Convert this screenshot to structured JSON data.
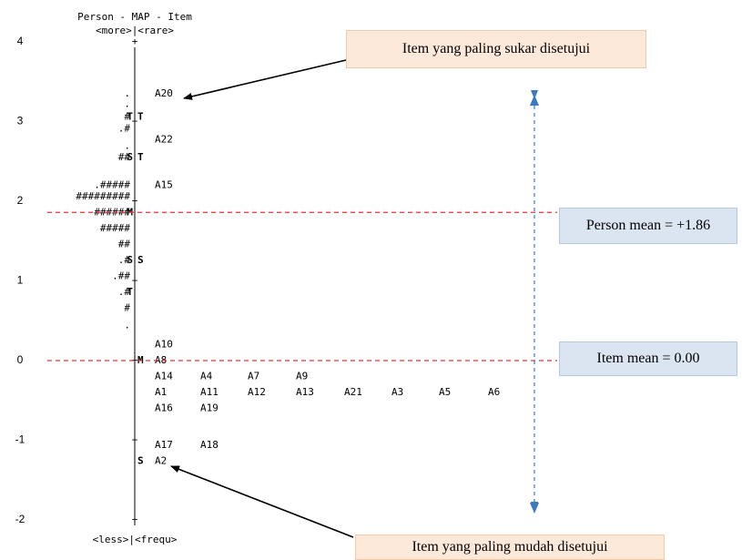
{
  "chart_data": {
    "type": "wright-map",
    "title_lines": [
      "Person - MAP - Item",
      "<more>|<rare>"
    ],
    "bottom_label": "<less>|<frequ>",
    "y_ticks": [
      4,
      3,
      2,
      1,
      0,
      -1,
      -2
    ],
    "person_rows": [
      {
        "y": 3.35,
        "symbols": "."
      },
      {
        "y": 3.22,
        "symbols": "."
      },
      {
        "y": 3.06,
        "symbols": "#"
      },
      {
        "y": 2.91,
        "symbols": ".#"
      },
      {
        "y": 2.69,
        "symbols": "."
      },
      {
        "y": 2.55,
        "symbols": "##"
      },
      {
        "y": 2.2,
        "symbols": ".#####"
      },
      {
        "y": 2.06,
        "symbols": "#########"
      },
      {
        "y": 1.86,
        "symbols": "######"
      },
      {
        "y": 1.66,
        "symbols": "#####"
      },
      {
        "y": 1.46,
        "symbols": "##"
      },
      {
        "y": 1.26,
        "symbols": ".#"
      },
      {
        "y": 1.06,
        "symbols": ".##"
      },
      {
        "y": 0.86,
        "symbols": ".#"
      },
      {
        "y": 0.66,
        "symbols": "#"
      },
      {
        "y": 0.44,
        "symbols": "."
      }
    ],
    "person_markers": [
      {
        "y": 3.06,
        "label": "T"
      },
      {
        "y": 2.55,
        "label": "S"
      },
      {
        "y": 1.86,
        "label": "M"
      },
      {
        "y": 1.26,
        "label": "S"
      },
      {
        "y": 0.86,
        "label": "T"
      }
    ],
    "item_markers": [
      {
        "y": 3.06,
        "label": "T"
      },
      {
        "y": 2.55,
        "label": "T"
      },
      {
        "y": 1.26,
        "label": "S"
      },
      {
        "y": 0.0,
        "label": "M"
      },
      {
        "y": -1.26,
        "label": "S"
      }
    ],
    "item_rows": [
      {
        "y": 3.35,
        "items": [
          "A20"
        ]
      },
      {
        "y": 2.77,
        "items": [
          "A22"
        ]
      },
      {
        "y": 2.2,
        "items": [
          "A15"
        ]
      },
      {
        "y": 0.2,
        "items": [
          "A10"
        ]
      },
      {
        "y": 0.0,
        "items": [
          "A8"
        ]
      },
      {
        "y": -0.2,
        "items": [
          "A14",
          "A4",
          "A7",
          "A9"
        ]
      },
      {
        "y": -0.4,
        "items": [
          "A1",
          "A11",
          "A12",
          "A13",
          "A21",
          "A3",
          "A5",
          "A6"
        ]
      },
      {
        "y": -0.6,
        "items": [
          "A16",
          "A19"
        ]
      },
      {
        "y": -1.06,
        "items": [
          "A17",
          "A18"
        ]
      },
      {
        "y": -1.26,
        "items": [
          "A2"
        ]
      }
    ],
    "person_mean": 1.86,
    "item_mean": 0.0,
    "annotations": {
      "hardest": "Item yang paling sukar disetujui",
      "easiest": "Item yang paling mudah disetujui",
      "person_mean_label": "Person mean = +1.86",
      "item_mean_label": "Item mean = 0.00"
    },
    "colors": {
      "mean_line": "#e8353b",
      "range_arrow": "#3a78c2",
      "callout_fill": "#fde9d9",
      "mean_box_fill": "#dbe5f1"
    }
  }
}
